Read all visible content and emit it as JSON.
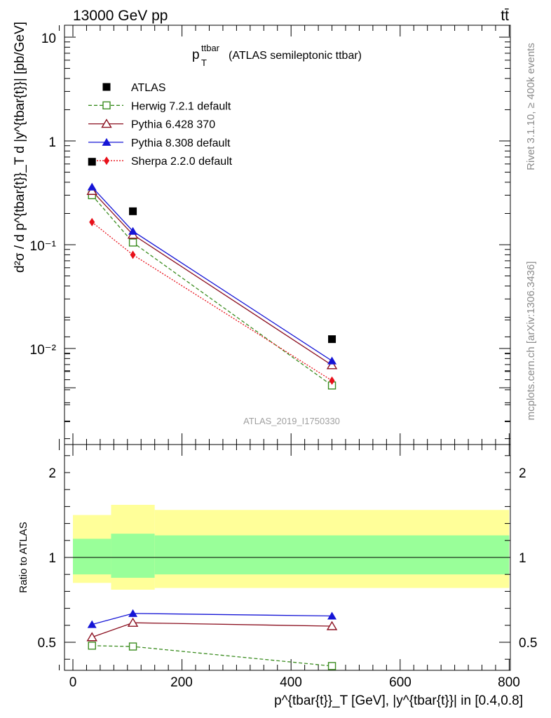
{
  "header": {
    "left": "13000 GeV pp",
    "right": "tt̄"
  },
  "side_labels": {
    "rivet": "Rivet 3.1.10, ≥ 400k events",
    "mcplots": "mcplots.cern.ch [arXiv:1306.3436]"
  },
  "watermark": "ATLAS_2019_I1750330",
  "colors": {
    "data": "#000000",
    "herwig": "#3a8c1f",
    "pythia6": "#8b1020",
    "pythia8": "#1515d6",
    "sherpa": "#e8101a",
    "band_inner": "#99ff99",
    "band_outer": "#ffff99"
  },
  "chart_data": [
    {
      "type": "scatter",
      "panel": "main",
      "title_main": "p",
      "title_sup": "ttbar",
      "title_sub": "T",
      "title_rest": "(ATLAS semileptonic ttbar)",
      "ylabel": "d²σ / d p^{tbar{t}}_T d |y^{tbar{t}}| [pb/GeV]",
      "yscale": "log",
      "ylim": [
        0.0013,
        13
      ],
      "xlim": [
        -30,
        810
      ],
      "ytick_labels": [
        "10",
        "1",
        "10⁻¹",
        "10⁻²"
      ],
      "legend_position": "top-left",
      "series": [
        {
          "name": "ATLAS",
          "x": [
            35,
            110,
            475
          ],
          "y": [
            0.63,
            0.21,
            0.0123
          ]
        },
        {
          "name": "Herwig 7.2.1 default",
          "x": [
            35,
            110,
            475
          ],
          "y": [
            0.3,
            0.105,
            0.0044
          ]
        },
        {
          "name": "Pythia 6.428 370",
          "x": [
            35,
            110,
            475
          ],
          "y": [
            0.33,
            0.125,
            0.0069
          ]
        },
        {
          "name": "Pythia 8.308 default",
          "x": [
            35,
            110,
            475
          ],
          "y": [
            0.36,
            0.135,
            0.0076
          ]
        },
        {
          "name": "Sherpa 2.2.0 default",
          "x": [
            35,
            110,
            475
          ],
          "y": [
            0.165,
            0.08,
            0.0049
          ]
        }
      ]
    },
    {
      "type": "line",
      "panel": "ratio",
      "ylabel": "Ratio to ATLAS",
      "ylim": [
        0.4,
        2.4
      ],
      "xlim": [
        -30,
        810
      ],
      "xlabel": "p^{tbar{t}}_T [GeV], |y^{tbar{t}}| in [0.4,0.8]",
      "ytick_labels": [
        "0.5",
        "1",
        "2"
      ],
      "xtick_labels": [
        "0",
        "200",
        "400",
        "600",
        "800"
      ],
      "band_bins": [
        {
          "x0": 0,
          "x1": 70,
          "inner": [
            0.9,
            1.11
          ],
          "outer": [
            0.85,
            1.25
          ]
        },
        {
          "x0": 70,
          "x1": 150,
          "inner": [
            0.88,
            1.14
          ],
          "outer": [
            0.81,
            1.31
          ]
        },
        {
          "x0": 150,
          "x1": 800,
          "inner": [
            0.9,
            1.13
          ],
          "outer": [
            0.82,
            1.28
          ]
        }
      ],
      "series": [
        {
          "name": "Herwig 7.2.1 default",
          "x": [
            35,
            110,
            475
          ],
          "y": [
            0.48,
            0.475,
            0.36
          ]
        },
        {
          "name": "Pythia 6.428 370",
          "x": [
            35,
            110,
            475
          ],
          "y": [
            0.53,
            0.615,
            0.595
          ]
        },
        {
          "name": "Pythia 8.308 default",
          "x": [
            35,
            110,
            475
          ],
          "y": [
            0.605,
            0.67,
            0.655
          ]
        }
      ]
    }
  ]
}
